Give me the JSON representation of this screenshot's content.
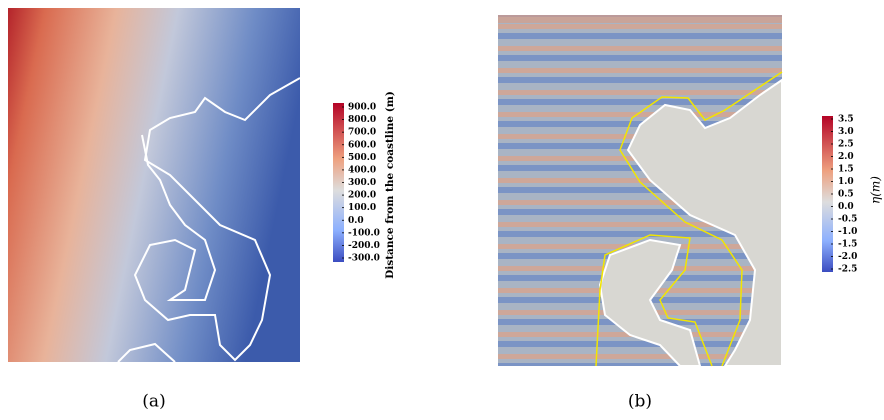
{
  "panels": [
    {
      "caption": "(a)",
      "colorbar": {
        "title": "Distance from the coastline (m)",
        "ticks": [
          "900.0",
          "800.0",
          "700.0",
          "600.0",
          "500.0",
          "400.0",
          "300.0",
          "200.0",
          "100.0",
          "0.0",
          "-100.0",
          "-200.0",
          "-300.0"
        ]
      }
    },
    {
      "caption": "(b)",
      "colorbar": {
        "title": "η(m)",
        "ticks": [
          "3.5",
          "3.0",
          "2.5",
          "2.0",
          "1.5",
          "1.0",
          "0.5",
          "0.0",
          "-0.5",
          "-1.0",
          "-1.5",
          "-2.0",
          "-2.5"
        ]
      }
    }
  ]
}
